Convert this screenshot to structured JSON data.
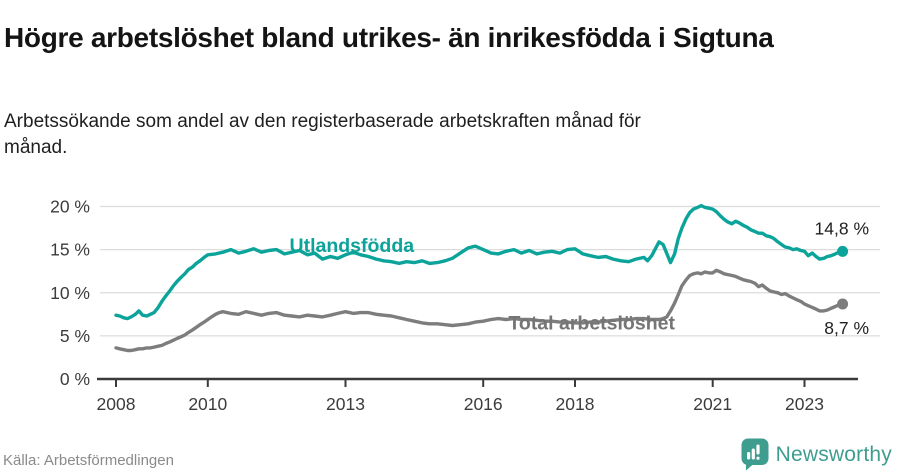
{
  "header": {
    "title": "Högre arbetslöshet bland utrikes- än inrikesfödda i Sigtuna",
    "subtitle": "Arbetssökande som andel av den registerbaserade arbetskraften månad för månad."
  },
  "footer": {
    "source": "Källa: Arbetsförmedlingen",
    "brand": "Newsworthy"
  },
  "colors": {
    "foreign_born_line": "#0ba39a",
    "total_line": "#7d7d7d",
    "total_label": "#757575",
    "grid": "#dcdcdc",
    "axis": "#3a3a3a",
    "tick_text": "#3c3c3c",
    "value_label_text": "#1f1f1f",
    "logo_teal": "#3f9d90"
  },
  "chart_data": {
    "type": "line",
    "title": "Högre arbetslöshet bland utrikes- än inrikesfödda i Sigtuna",
    "subtitle": "Arbetssökande som andel av den registerbaserade arbetskraften månad för månad.",
    "xlabel": "",
    "ylabel": "",
    "grid": true,
    "legend_position": "inline-labels-on-lines",
    "x_axis": {
      "ticks": [
        {
          "value": 2008,
          "label": "2008"
        },
        {
          "value": 2010,
          "label": "2010"
        },
        {
          "value": 2013,
          "label": "2013"
        },
        {
          "value": 2016,
          "label": "2016"
        },
        {
          "value": 2018,
          "label": "2018"
        },
        {
          "value": 2021,
          "label": "2021"
        },
        {
          "value": 2023,
          "label": "2023"
        }
      ],
      "range": [
        2007.93,
        2024.25
      ]
    },
    "y_axis": {
      "ticks": [
        {
          "value": 0,
          "label": "0 %"
        },
        {
          "value": 5,
          "label": "5 %"
        },
        {
          "value": 10,
          "label": "10 %"
        },
        {
          "value": 15,
          "label": "15 %"
        },
        {
          "value": 20,
          "label": "20 %"
        }
      ],
      "range": [
        0,
        21.5
      ]
    },
    "series": [
      {
        "name": "Utlandsfödda",
        "color": "#0ba39a",
        "end_label": "14,8 %",
        "end_value": 14.8,
        "label_at": {
          "year": 2011.78,
          "value": 14.72
        },
        "end_label_dy": -17,
        "points": [
          [
            2008.0,
            7.4
          ],
          [
            2008.08,
            7.3
          ],
          [
            2008.17,
            7.1
          ],
          [
            2008.25,
            7.0
          ],
          [
            2008.33,
            7.2
          ],
          [
            2008.42,
            7.5
          ],
          [
            2008.5,
            7.9
          ],
          [
            2008.58,
            7.4
          ],
          [
            2008.67,
            7.3
          ],
          [
            2008.75,
            7.5
          ],
          [
            2008.83,
            7.7
          ],
          [
            2008.92,
            8.3
          ],
          [
            2009.0,
            9.0
          ],
          [
            2009.08,
            9.6
          ],
          [
            2009.17,
            10.2
          ],
          [
            2009.25,
            10.8
          ],
          [
            2009.33,
            11.3
          ],
          [
            2009.42,
            11.8
          ],
          [
            2009.5,
            12.2
          ],
          [
            2009.58,
            12.7
          ],
          [
            2009.67,
            13.0
          ],
          [
            2009.75,
            13.4
          ],
          [
            2009.83,
            13.7
          ],
          [
            2009.92,
            14.1
          ],
          [
            2010.0,
            14.4
          ],
          [
            2010.17,
            14.5
          ],
          [
            2010.33,
            14.7
          ],
          [
            2010.5,
            15.0
          ],
          [
            2010.67,
            14.6
          ],
          [
            2010.83,
            14.8
          ],
          [
            2011.0,
            15.1
          ],
          [
            2011.17,
            14.7
          ],
          [
            2011.33,
            14.9
          ],
          [
            2011.5,
            15.0
          ],
          [
            2011.67,
            14.5
          ],
          [
            2011.83,
            14.7
          ],
          [
            2012.0,
            14.9
          ],
          [
            2012.17,
            14.4
          ],
          [
            2012.33,
            14.6
          ],
          [
            2012.5,
            13.9
          ],
          [
            2012.67,
            14.2
          ],
          [
            2012.83,
            14.0
          ],
          [
            2013.0,
            14.4
          ],
          [
            2013.17,
            14.7
          ],
          [
            2013.33,
            14.4
          ],
          [
            2013.5,
            14.2
          ],
          [
            2013.67,
            13.9
          ],
          [
            2013.83,
            13.7
          ],
          [
            2014.0,
            13.6
          ],
          [
            2014.17,
            13.4
          ],
          [
            2014.33,
            13.6
          ],
          [
            2014.5,
            13.5
          ],
          [
            2014.67,
            13.7
          ],
          [
            2014.83,
            13.4
          ],
          [
            2015.0,
            13.5
          ],
          [
            2015.17,
            13.7
          ],
          [
            2015.33,
            14.0
          ],
          [
            2015.5,
            14.6
          ],
          [
            2015.67,
            15.2
          ],
          [
            2015.83,
            15.4
          ],
          [
            2016.0,
            15.0
          ],
          [
            2016.17,
            14.6
          ],
          [
            2016.33,
            14.5
          ],
          [
            2016.5,
            14.8
          ],
          [
            2016.67,
            15.0
          ],
          [
            2016.83,
            14.6
          ],
          [
            2017.0,
            14.9
          ],
          [
            2017.17,
            14.5
          ],
          [
            2017.33,
            14.7
          ],
          [
            2017.5,
            14.8
          ],
          [
            2017.67,
            14.6
          ],
          [
            2017.83,
            15.0
          ],
          [
            2018.0,
            15.1
          ],
          [
            2018.17,
            14.5
          ],
          [
            2018.33,
            14.3
          ],
          [
            2018.5,
            14.1
          ],
          [
            2018.67,
            14.2
          ],
          [
            2018.83,
            13.9
          ],
          [
            2019.0,
            13.7
          ],
          [
            2019.17,
            13.6
          ],
          [
            2019.33,
            13.9
          ],
          [
            2019.5,
            14.1
          ],
          [
            2019.58,
            13.7
          ],
          [
            2019.67,
            14.3
          ],
          [
            2019.83,
            15.9
          ],
          [
            2019.92,
            15.6
          ],
          [
            2020.08,
            13.5
          ],
          [
            2020.17,
            14.5
          ],
          [
            2020.25,
            16.3
          ],
          [
            2020.33,
            17.5
          ],
          [
            2020.42,
            18.6
          ],
          [
            2020.5,
            19.3
          ],
          [
            2020.58,
            19.7
          ],
          [
            2020.67,
            19.9
          ],
          [
            2020.75,
            20.1
          ],
          [
            2020.83,
            19.9
          ],
          [
            2020.92,
            19.8
          ],
          [
            2021.0,
            19.7
          ],
          [
            2021.08,
            19.4
          ],
          [
            2021.17,
            18.9
          ],
          [
            2021.25,
            18.5
          ],
          [
            2021.33,
            18.2
          ],
          [
            2021.42,
            18.0
          ],
          [
            2021.5,
            18.3
          ],
          [
            2021.58,
            18.1
          ],
          [
            2021.67,
            17.8
          ],
          [
            2021.75,
            17.6
          ],
          [
            2021.83,
            17.3
          ],
          [
            2021.92,
            17.1
          ],
          [
            2022.0,
            16.9
          ],
          [
            2022.08,
            16.9
          ],
          [
            2022.17,
            16.6
          ],
          [
            2022.25,
            16.5
          ],
          [
            2022.33,
            16.3
          ],
          [
            2022.42,
            15.9
          ],
          [
            2022.5,
            15.6
          ],
          [
            2022.58,
            15.3
          ],
          [
            2022.67,
            15.2
          ],
          [
            2022.75,
            15.0
          ],
          [
            2022.83,
            15.1
          ],
          [
            2022.92,
            14.9
          ],
          [
            2023.0,
            14.8
          ],
          [
            2023.08,
            14.3
          ],
          [
            2023.17,
            14.6
          ],
          [
            2023.25,
            14.2
          ],
          [
            2023.33,
            13.9
          ],
          [
            2023.42,
            14.0
          ],
          [
            2023.5,
            14.2
          ],
          [
            2023.58,
            14.3
          ],
          [
            2023.67,
            14.5
          ],
          [
            2023.75,
            14.7
          ],
          [
            2023.83,
            14.8
          ]
        ]
      },
      {
        "name": "Total arbetslöshet",
        "color": "#7d7d7d",
        "label_color": "#757575",
        "end_label": "8,7 %",
        "end_value": 8.7,
        "label_at": {
          "year": 2016.55,
          "value": 5.75
        },
        "end_label_dy": 30,
        "points": [
          [
            2008.0,
            3.6
          ],
          [
            2008.08,
            3.5
          ],
          [
            2008.17,
            3.4
          ],
          [
            2008.25,
            3.3
          ],
          [
            2008.33,
            3.3
          ],
          [
            2008.42,
            3.4
          ],
          [
            2008.5,
            3.5
          ],
          [
            2008.58,
            3.5
          ],
          [
            2008.67,
            3.6
          ],
          [
            2008.75,
            3.6
          ],
          [
            2008.83,
            3.7
          ],
          [
            2008.92,
            3.8
          ],
          [
            2009.0,
            3.9
          ],
          [
            2009.08,
            4.1
          ],
          [
            2009.17,
            4.3
          ],
          [
            2009.25,
            4.5
          ],
          [
            2009.33,
            4.7
          ],
          [
            2009.42,
            4.9
          ],
          [
            2009.5,
            5.1
          ],
          [
            2009.58,
            5.4
          ],
          [
            2009.67,
            5.7
          ],
          [
            2009.75,
            6.0
          ],
          [
            2009.83,
            6.3
          ],
          [
            2009.92,
            6.6
          ],
          [
            2010.0,
            6.9
          ],
          [
            2010.08,
            7.2
          ],
          [
            2010.17,
            7.5
          ],
          [
            2010.25,
            7.7
          ],
          [
            2010.33,
            7.8
          ],
          [
            2010.5,
            7.6
          ],
          [
            2010.67,
            7.5
          ],
          [
            2010.83,
            7.8
          ],
          [
            2011.0,
            7.6
          ],
          [
            2011.17,
            7.4
          ],
          [
            2011.33,
            7.6
          ],
          [
            2011.5,
            7.7
          ],
          [
            2011.67,
            7.4
          ],
          [
            2011.83,
            7.3
          ],
          [
            2012.0,
            7.2
          ],
          [
            2012.17,
            7.4
          ],
          [
            2012.33,
            7.3
          ],
          [
            2012.5,
            7.2
          ],
          [
            2012.67,
            7.4
          ],
          [
            2012.83,
            7.6
          ],
          [
            2013.0,
            7.8
          ],
          [
            2013.17,
            7.6
          ],
          [
            2013.33,
            7.7
          ],
          [
            2013.5,
            7.7
          ],
          [
            2013.67,
            7.5
          ],
          [
            2013.83,
            7.4
          ],
          [
            2014.0,
            7.3
          ],
          [
            2014.17,
            7.1
          ],
          [
            2014.33,
            6.9
          ],
          [
            2014.5,
            6.7
          ],
          [
            2014.67,
            6.5
          ],
          [
            2014.83,
            6.4
          ],
          [
            2015.0,
            6.4
          ],
          [
            2015.17,
            6.3
          ],
          [
            2015.33,
            6.2
          ],
          [
            2015.5,
            6.3
          ],
          [
            2015.67,
            6.4
          ],
          [
            2015.83,
            6.6
          ],
          [
            2016.0,
            6.7
          ],
          [
            2016.17,
            6.9
          ],
          [
            2016.33,
            7.0
          ],
          [
            2016.5,
            6.9
          ],
          [
            2016.67,
            7.0
          ],
          [
            2016.83,
            6.9
          ],
          [
            2017.0,
            6.9
          ],
          [
            2017.17,
            6.8
          ],
          [
            2017.33,
            6.7
          ],
          [
            2017.5,
            6.7
          ],
          [
            2017.67,
            6.6
          ],
          [
            2017.83,
            6.6
          ],
          [
            2018.0,
            6.5
          ],
          [
            2018.17,
            6.5
          ],
          [
            2018.33,
            6.6
          ],
          [
            2018.5,
            6.6
          ],
          [
            2018.67,
            6.7
          ],
          [
            2018.83,
            6.8
          ],
          [
            2019.0,
            6.9
          ],
          [
            2019.17,
            6.9
          ],
          [
            2019.33,
            7.0
          ],
          [
            2019.5,
            7.0
          ],
          [
            2019.67,
            6.9
          ],
          [
            2019.83,
            6.9
          ],
          [
            2019.92,
            7.0
          ],
          [
            2020.0,
            7.2
          ],
          [
            2020.08,
            7.9
          ],
          [
            2020.17,
            8.8
          ],
          [
            2020.25,
            9.8
          ],
          [
            2020.33,
            10.8
          ],
          [
            2020.42,
            11.5
          ],
          [
            2020.5,
            12.0
          ],
          [
            2020.58,
            12.2
          ],
          [
            2020.67,
            12.3
          ],
          [
            2020.75,
            12.2
          ],
          [
            2020.83,
            12.4
          ],
          [
            2020.92,
            12.3
          ],
          [
            2021.0,
            12.3
          ],
          [
            2021.08,
            12.6
          ],
          [
            2021.17,
            12.4
          ],
          [
            2021.25,
            12.2
          ],
          [
            2021.33,
            12.1
          ],
          [
            2021.42,
            12.0
          ],
          [
            2021.5,
            11.9
          ],
          [
            2021.58,
            11.7
          ],
          [
            2021.67,
            11.5
          ],
          [
            2021.75,
            11.4
          ],
          [
            2021.83,
            11.3
          ],
          [
            2021.92,
            11.1
          ],
          [
            2022.0,
            10.7
          ],
          [
            2022.08,
            10.9
          ],
          [
            2022.17,
            10.5
          ],
          [
            2022.25,
            10.2
          ],
          [
            2022.33,
            10.1
          ],
          [
            2022.42,
            10.0
          ],
          [
            2022.5,
            9.8
          ],
          [
            2022.58,
            9.9
          ],
          [
            2022.67,
            9.6
          ],
          [
            2022.75,
            9.4
          ],
          [
            2022.83,
            9.2
          ],
          [
            2022.92,
            9.0
          ],
          [
            2023.0,
            8.7
          ],
          [
            2023.08,
            8.5
          ],
          [
            2023.17,
            8.3
          ],
          [
            2023.25,
            8.1
          ],
          [
            2023.33,
            7.9
          ],
          [
            2023.42,
            7.9
          ],
          [
            2023.5,
            8.0
          ],
          [
            2023.58,
            8.2
          ],
          [
            2023.67,
            8.4
          ],
          [
            2023.75,
            8.6
          ],
          [
            2023.83,
            8.7
          ]
        ]
      }
    ]
  }
}
